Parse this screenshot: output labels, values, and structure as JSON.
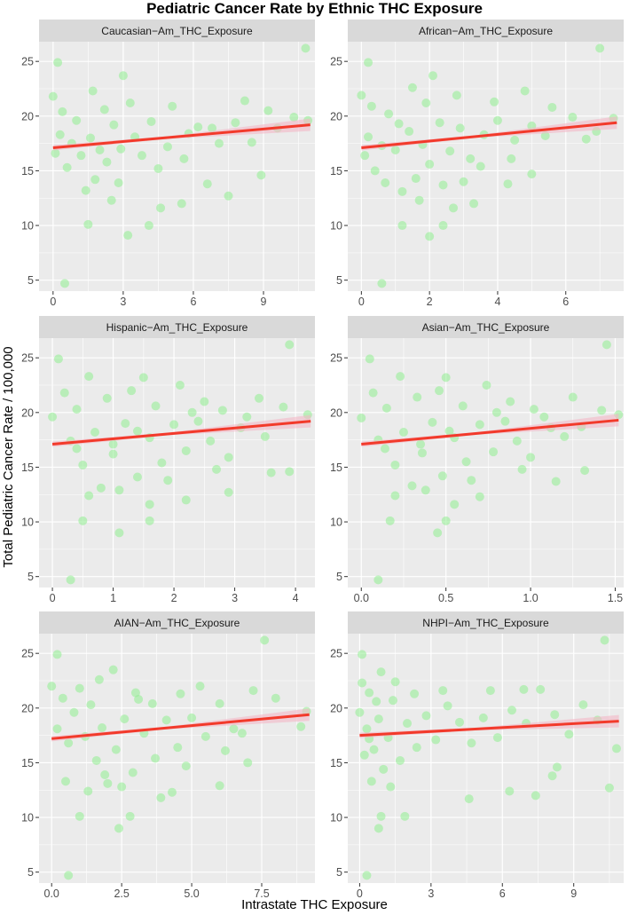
{
  "title": "Pediatric Cancer Rate by Ethnic THC Exposure",
  "x_axis_title": "Intrastate THC Exposure",
  "y_axis_title": "Total Pediatric Cancer Rate / 100,000",
  "colors": {
    "strip": "#d9d9d9",
    "panel": "#ebebeb",
    "grid": "#ffffff",
    "points": "#90ee90",
    "trend": "#f23a2b",
    "band": "#f3b8c7"
  },
  "chart_data": [
    {
      "type": "scatter",
      "title": "Caucasian−Am_THC_Exposure",
      "xlim": [
        -0.6,
        11.2
      ],
      "ylim": [
        4.0,
        26.8
      ],
      "x_ticks": [
        0,
        3,
        6,
        9
      ],
      "x_tick_labels": [
        "0",
        "3",
        "6",
        "9"
      ],
      "y_ticks": [
        5,
        10,
        15,
        20,
        25
      ],
      "y_tick_labels": [
        "5",
        "10",
        "15",
        "20",
        "25"
      ],
      "trend": {
        "x0": 0,
        "y0": 17.1,
        "x1": 11.0,
        "y1": 19.2
      },
      "points": [
        [
          0.2,
          24.9
        ],
        [
          0.5,
          4.7
        ],
        [
          1.5,
          10.1
        ],
        [
          3.2,
          9.1
        ],
        [
          4.1,
          10.0
        ],
        [
          4.6,
          11.6
        ],
        [
          5.5,
          12.0
        ],
        [
          6.6,
          13.8
        ],
        [
          7.5,
          12.7
        ],
        [
          8.9,
          14.6
        ],
        [
          10.8,
          26.2
        ],
        [
          10.9,
          19.6
        ],
        [
          9.2,
          20.5
        ],
        [
          8.2,
          21.4
        ],
        [
          7.1,
          17.5
        ],
        [
          6.2,
          19.0
        ],
        [
          5.8,
          18.4
        ],
        [
          4.9,
          17.2
        ],
        [
          4.2,
          19.5
        ],
        [
          3.8,
          16.4
        ],
        [
          3.5,
          18.1
        ],
        [
          2.9,
          17.0
        ],
        [
          2.6,
          19.2
        ],
        [
          2.3,
          15.8
        ],
        [
          2.0,
          16.9
        ],
        [
          1.8,
          14.2
        ],
        [
          1.6,
          18.0
        ],
        [
          1.4,
          13.2
        ],
        [
          1.2,
          16.4
        ],
        [
          1.0,
          19.6
        ],
        [
          0.8,
          17.5
        ],
        [
          0.6,
          15.3
        ],
        [
          0.4,
          20.4
        ],
        [
          0.3,
          18.3
        ],
        [
          0.1,
          16.6
        ],
        [
          0.0,
          21.8
        ],
        [
          2.2,
          20.6
        ],
        [
          2.8,
          13.9
        ],
        [
          3.3,
          21.2
        ],
        [
          4.5,
          15.2
        ],
        [
          5.1,
          20.9
        ],
        [
          5.6,
          16.1
        ],
        [
          6.8,
          18.9
        ],
        [
          7.8,
          19.4
        ],
        [
          8.5,
          17.6
        ],
        [
          9.6,
          18.9
        ],
        [
          10.3,
          19.9
        ],
        [
          1.7,
          22.3
        ],
        [
          3.0,
          23.7
        ],
        [
          2.5,
          12.3
        ]
      ]
    },
    {
      "type": "scatter",
      "title": "African−Am_THC_Exposure",
      "xlim": [
        -0.4,
        7.7
      ],
      "ylim": [
        4.0,
        26.8
      ],
      "x_ticks": [
        0,
        2,
        4,
        6
      ],
      "x_tick_labels": [
        "0",
        "2",
        "4",
        "6"
      ],
      "y_ticks": [
        5,
        10,
        15,
        20,
        25
      ],
      "y_tick_labels": [
        "5",
        "10",
        "15",
        "20",
        "25"
      ],
      "trend": {
        "x0": 0,
        "y0": 17.1,
        "x1": 7.5,
        "y1": 19.4
      },
      "points": [
        [
          0.2,
          24.9
        ],
        [
          0.6,
          4.7
        ],
        [
          1.2,
          10.0
        ],
        [
          2.0,
          9.0
        ],
        [
          2.4,
          10.0
        ],
        [
          2.7,
          11.6
        ],
        [
          3.3,
          12.0
        ],
        [
          4.3,
          13.8
        ],
        [
          5.0,
          14.7
        ],
        [
          7.0,
          26.2
        ],
        [
          7.4,
          19.8
        ],
        [
          6.2,
          19.9
        ],
        [
          5.6,
          20.8
        ],
        [
          5.0,
          19.1
        ],
        [
          4.5,
          17.8
        ],
        [
          4.0,
          19.6
        ],
        [
          3.6,
          18.3
        ],
        [
          3.2,
          16.1
        ],
        [
          2.9,
          18.9
        ],
        [
          2.6,
          16.8
        ],
        [
          2.3,
          19.4
        ],
        [
          2.0,
          15.6
        ],
        [
          1.8,
          17.4
        ],
        [
          1.6,
          14.3
        ],
        [
          1.4,
          18.6
        ],
        [
          1.2,
          13.1
        ],
        [
          1.0,
          16.9
        ],
        [
          0.8,
          20.2
        ],
        [
          0.6,
          17.3
        ],
        [
          0.4,
          15.0
        ],
        [
          0.3,
          20.9
        ],
        [
          0.2,
          18.1
        ],
        [
          0.1,
          16.4
        ],
        [
          0.0,
          21.9
        ],
        [
          1.9,
          21.2
        ],
        [
          2.4,
          13.7
        ],
        [
          2.8,
          21.9
        ],
        [
          3.5,
          15.4
        ],
        [
          3.9,
          21.3
        ],
        [
          4.4,
          16.1
        ],
        [
          4.8,
          22.3
        ],
        [
          5.4,
          18.2
        ],
        [
          6.6,
          17.9
        ],
        [
          6.9,
          18.6
        ],
        [
          1.5,
          22.6
        ],
        [
          2.1,
          23.7
        ],
        [
          1.7,
          12.3
        ],
        [
          3.0,
          14.0
        ],
        [
          1.1,
          19.3
        ],
        [
          0.7,
          13.9
        ]
      ]
    },
    {
      "type": "scatter",
      "title": "Hispanic−Am_THC_Exposure",
      "xlim": [
        -0.22,
        4.32
      ],
      "ylim": [
        4.0,
        26.8
      ],
      "x_ticks": [
        0,
        1,
        2,
        3,
        4
      ],
      "x_tick_labels": [
        "0",
        "1",
        "2",
        "3",
        "4"
      ],
      "y_ticks": [
        5,
        10,
        15,
        20,
        25
      ],
      "y_tick_labels": [
        "5",
        "10",
        "15",
        "20",
        "25"
      ],
      "trend": {
        "x0": 0,
        "y0": 17.1,
        "x1": 4.25,
        "y1": 19.2
      },
      "points": [
        [
          0.1,
          24.9
        ],
        [
          0.3,
          4.7
        ],
        [
          0.5,
          10.1
        ],
        [
          1.1,
          9.0
        ],
        [
          1.6,
          10.1
        ],
        [
          1.6,
          11.6
        ],
        [
          2.2,
          12.0
        ],
        [
          2.9,
          12.7
        ],
        [
          3.6,
          14.5
        ],
        [
          3.9,
          14.6
        ],
        [
          3.9,
          26.2
        ],
        [
          4.2,
          19.8
        ],
        [
          3.8,
          20.5
        ],
        [
          3.4,
          21.3
        ],
        [
          3.1,
          18.6
        ],
        [
          2.8,
          20.2
        ],
        [
          2.6,
          17.4
        ],
        [
          2.4,
          19.2
        ],
        [
          2.2,
          16.5
        ],
        [
          2.0,
          18.9
        ],
        [
          1.8,
          15.4
        ],
        [
          1.6,
          17.7
        ],
        [
          1.4,
          14.1
        ],
        [
          1.2,
          19.0
        ],
        [
          1.0,
          16.2
        ],
        [
          0.8,
          13.1
        ],
        [
          0.7,
          18.2
        ],
        [
          0.5,
          15.2
        ],
        [
          0.4,
          20.3
        ],
        [
          0.3,
          17.4
        ],
        [
          0.2,
          21.8
        ],
        [
          0.0,
          19.6
        ],
        [
          0.9,
          21.3
        ],
        [
          1.3,
          22.0
        ],
        [
          1.7,
          20.6
        ],
        [
          2.1,
          22.5
        ],
        [
          2.5,
          21.0
        ],
        [
          2.9,
          15.9
        ],
        [
          3.2,
          19.6
        ],
        [
          3.5,
          17.8
        ],
        [
          1.5,
          23.2
        ],
        [
          0.6,
          12.4
        ],
        [
          1.1,
          12.9
        ],
        [
          1.9,
          13.8
        ],
        [
          2.7,
          14.8
        ],
        [
          0.6,
          23.3
        ],
        [
          1.0,
          17.1
        ],
        [
          0.4,
          16.7
        ],
        [
          2.3,
          20.0
        ],
        [
          1.4,
          18.3
        ]
      ]
    },
    {
      "type": "scatter",
      "title": "Asian−Am_THC_Exposure",
      "xlim": [
        -0.08,
        1.55
      ],
      "ylim": [
        4.0,
        26.8
      ],
      "x_ticks": [
        0,
        0.5,
        1.0,
        1.5
      ],
      "x_tick_labels": [
        "0.0",
        "0.5",
        "1.0",
        "1.5"
      ],
      "y_ticks": [
        5,
        10,
        15,
        20,
        25
      ],
      "y_tick_labels": [
        "5",
        "10",
        "15",
        "20",
        "25"
      ],
      "trend": {
        "x0": 0,
        "y0": 17.1,
        "x1": 1.52,
        "y1": 19.3
      },
      "points": [
        [
          0.05,
          24.9
        ],
        [
          0.1,
          4.7
        ],
        [
          0.17,
          10.1
        ],
        [
          0.45,
          9.0
        ],
        [
          0.5,
          10.1
        ],
        [
          0.55,
          11.6
        ],
        [
          0.7,
          12.3
        ],
        [
          1.15,
          13.7
        ],
        [
          1.32,
          14.7
        ],
        [
          1.45,
          26.2
        ],
        [
          1.52,
          19.8
        ],
        [
          1.42,
          20.2
        ],
        [
          1.25,
          21.4
        ],
        [
          1.12,
          18.6
        ],
        [
          1.02,
          20.3
        ],
        [
          0.92,
          17.4
        ],
        [
          0.85,
          19.2
        ],
        [
          0.78,
          16.4
        ],
        [
          0.7,
          18.9
        ],
        [
          0.62,
          15.5
        ],
        [
          0.55,
          17.7
        ],
        [
          0.48,
          14.2
        ],
        [
          0.42,
          19.1
        ],
        [
          0.36,
          16.3
        ],
        [
          0.3,
          13.3
        ],
        [
          0.25,
          18.2
        ],
        [
          0.2,
          15.2
        ],
        [
          0.15,
          20.4
        ],
        [
          0.1,
          17.5
        ],
        [
          0.07,
          21.8
        ],
        [
          0.0,
          19.5
        ],
        [
          0.33,
          21.4
        ],
        [
          0.46,
          22.0
        ],
        [
          0.6,
          20.6
        ],
        [
          0.74,
          22.5
        ],
        [
          0.88,
          21.0
        ],
        [
          1.0,
          15.9
        ],
        [
          1.08,
          19.6
        ],
        [
          1.2,
          17.8
        ],
        [
          0.5,
          23.2
        ],
        [
          0.2,
          12.4
        ],
        [
          0.38,
          12.9
        ],
        [
          0.65,
          13.8
        ],
        [
          0.95,
          14.8
        ],
        [
          0.23,
          23.3
        ],
        [
          0.35,
          17.1
        ],
        [
          0.14,
          16.7
        ],
        [
          0.8,
          20.0
        ],
        [
          0.52,
          18.3
        ],
        [
          1.3,
          18.7
        ]
      ]
    },
    {
      "type": "scatter",
      "title": "AIAN−Am_THC_Exposure",
      "xlim": [
        -0.45,
        9.4
      ],
      "ylim": [
        4.0,
        26.8
      ],
      "x_ticks": [
        0,
        2.5,
        5,
        7.5
      ],
      "x_tick_labels": [
        "0.0",
        "2.5",
        "5.0",
        "7.5"
      ],
      "y_ticks": [
        5,
        10,
        15,
        20,
        25
      ],
      "y_tick_labels": [
        "5",
        "10",
        "15",
        "20",
        "25"
      ],
      "trend": {
        "x0": 0,
        "y0": 17.2,
        "x1": 9.2,
        "y1": 19.4
      },
      "points": [
        [
          0.2,
          24.9
        ],
        [
          0.6,
          4.7
        ],
        [
          1.0,
          10.1
        ],
        [
          2.4,
          9.0
        ],
        [
          2.8,
          10.1
        ],
        [
          3.9,
          11.8
        ],
        [
          4.3,
          12.3
        ],
        [
          6.0,
          12.9
        ],
        [
          7.0,
          15.0
        ],
        [
          7.6,
          26.2
        ],
        [
          8.9,
          18.3
        ],
        [
          9.1,
          19.7
        ],
        [
          8.0,
          20.9
        ],
        [
          7.2,
          21.6
        ],
        [
          6.5,
          18.1
        ],
        [
          6.0,
          20.4
        ],
        [
          5.5,
          17.4
        ],
        [
          5.0,
          19.1
        ],
        [
          4.5,
          16.4
        ],
        [
          4.1,
          18.9
        ],
        [
          3.7,
          15.4
        ],
        [
          3.3,
          17.7
        ],
        [
          2.9,
          14.1
        ],
        [
          2.6,
          19.0
        ],
        [
          2.3,
          16.2
        ],
        [
          2.0,
          13.1
        ],
        [
          1.8,
          18.2
        ],
        [
          1.6,
          15.2
        ],
        [
          1.4,
          20.3
        ],
        [
          1.2,
          17.4
        ],
        [
          1.0,
          21.8
        ],
        [
          0.8,
          19.6
        ],
        [
          0.6,
          16.8
        ],
        [
          0.4,
          20.9
        ],
        [
          0.2,
          18.1
        ],
        [
          0.0,
          22.0
        ],
        [
          1.7,
          22.6
        ],
        [
          2.2,
          23.5
        ],
        [
          3.0,
          21.4
        ],
        [
          3.6,
          20.4
        ],
        [
          4.6,
          21.3
        ],
        [
          5.3,
          22.0
        ],
        [
          6.2,
          16.1
        ],
        [
          1.3,
          12.4
        ],
        [
          1.9,
          13.9
        ],
        [
          2.5,
          12.8
        ],
        [
          3.1,
          20.8
        ],
        [
          4.8,
          14.7
        ],
        [
          6.8,
          17.7
        ],
        [
          0.5,
          13.3
        ]
      ]
    },
    {
      "type": "scatter",
      "title": "NHPI−Am_THC_Exposure",
      "xlim": [
        -0.5,
        11.1
      ],
      "ylim": [
        4.0,
        26.8
      ],
      "x_ticks": [
        0,
        3,
        6,
        9
      ],
      "x_tick_labels": [
        "0",
        "3",
        "6",
        "9"
      ],
      "y_ticks": [
        5,
        10,
        15,
        20,
        25
      ],
      "y_tick_labels": [
        "5",
        "10",
        "15",
        "20",
        "25"
      ],
      "trend": {
        "x0": 0,
        "y0": 17.5,
        "x1": 10.9,
        "y1": 18.8
      },
      "points": [
        [
          0.1,
          24.9
        ],
        [
          0.3,
          4.7
        ],
        [
          0.8,
          9.0
        ],
        [
          0.9,
          10.1
        ],
        [
          1.9,
          10.1
        ],
        [
          4.6,
          11.7
        ],
        [
          6.3,
          12.4
        ],
        [
          7.4,
          12.0
        ],
        [
          8.1,
          13.8
        ],
        [
          8.3,
          14.6
        ],
        [
          10.3,
          26.2
        ],
        [
          10.5,
          12.7
        ],
        [
          10.8,
          16.3
        ],
        [
          10.0,
          18.9
        ],
        [
          9.4,
          20.3
        ],
        [
          8.8,
          17.6
        ],
        [
          8.2,
          19.4
        ],
        [
          7.6,
          21.7
        ],
        [
          7.0,
          18.6
        ],
        [
          6.4,
          19.8
        ],
        [
          5.8,
          17.3
        ],
        [
          5.2,
          19.1
        ],
        [
          4.7,
          16.8
        ],
        [
          4.2,
          18.7
        ],
        [
          3.7,
          20.2
        ],
        [
          3.2,
          17.1
        ],
        [
          2.8,
          19.3
        ],
        [
          2.4,
          16.4
        ],
        [
          2.0,
          18.6
        ],
        [
          1.7,
          15.2
        ],
        [
          1.4,
          20.7
        ],
        [
          1.2,
          17.3
        ],
        [
          1.0,
          14.4
        ],
        [
          0.8,
          19.0
        ],
        [
          0.6,
          16.2
        ],
        [
          0.5,
          13.3
        ],
        [
          0.4,
          21.4
        ],
        [
          0.3,
          18.1
        ],
        [
          0.2,
          15.7
        ],
        [
          0.1,
          22.3
        ],
        [
          0.0,
          19.6
        ],
        [
          0.9,
          23.3
        ],
        [
          1.5,
          22.4
        ],
        [
          2.3,
          21.3
        ],
        [
          3.5,
          21.6
        ],
        [
          5.5,
          21.6
        ],
        [
          6.9,
          21.7
        ],
        [
          1.3,
          12.8
        ],
        [
          0.7,
          20.6
        ],
        [
          0.4,
          17.2
        ]
      ]
    }
  ]
}
